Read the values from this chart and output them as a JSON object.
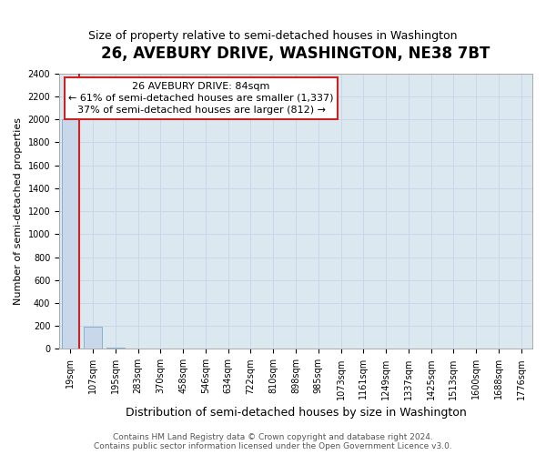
{
  "title": "26, AVEBURY DRIVE, WASHINGTON, NE38 7BT",
  "subtitle": "Size of property relative to semi-detached houses in Washington",
  "xlabel": "Distribution of semi-detached houses by size in Washington",
  "ylabel": "Number of semi-detached properties",
  "bin_labels": [
    "19sqm",
    "107sqm",
    "195sqm",
    "283sqm",
    "370sqm",
    "458sqm",
    "546sqm",
    "634sqm",
    "722sqm",
    "810sqm",
    "898sqm",
    "985sqm",
    "1073sqm",
    "1161sqm",
    "1249sqm",
    "1337sqm",
    "1425sqm",
    "1513sqm",
    "1600sqm",
    "1688sqm",
    "1776sqm"
  ],
  "bar_values": [
    2000,
    196,
    12,
    5,
    3,
    2,
    1,
    1,
    1,
    1,
    0,
    0,
    0,
    0,
    0,
    0,
    0,
    0,
    0,
    0,
    0
  ],
  "bar_color": "#c8d8ea",
  "bar_edge_color": "#7aaac8",
  "ylim": [
    0,
    2400
  ],
  "yticks": [
    0,
    200,
    400,
    600,
    800,
    1000,
    1200,
    1400,
    1600,
    1800,
    2000,
    2200,
    2400
  ],
  "property_sqm": 84,
  "annotation_line1": "26 AVEBURY DRIVE: 84sqm",
  "annotation_line2": "← 61% of semi-detached houses are smaller (1,337)",
  "annotation_line3": "37% of semi-detached houses are larger (812) →",
  "footer_line1": "Contains HM Land Registry data © Crown copyright and database right 2024.",
  "footer_line2": "Contains public sector information licensed under the Open Government Licence v3.0.",
  "grid_color": "#c8d8ea",
  "background_color": "#dce8f0",
  "vline_color": "#cc2222",
  "ann_edge_color": "#cc2222",
  "ann_face_color": "#ffffff",
  "title_fontsize": 12,
  "subtitle_fontsize": 9,
  "ylabel_fontsize": 8,
  "xlabel_fontsize": 9,
  "tick_fontsize": 7,
  "ann_fontsize": 8,
  "footer_fontsize": 6.5
}
